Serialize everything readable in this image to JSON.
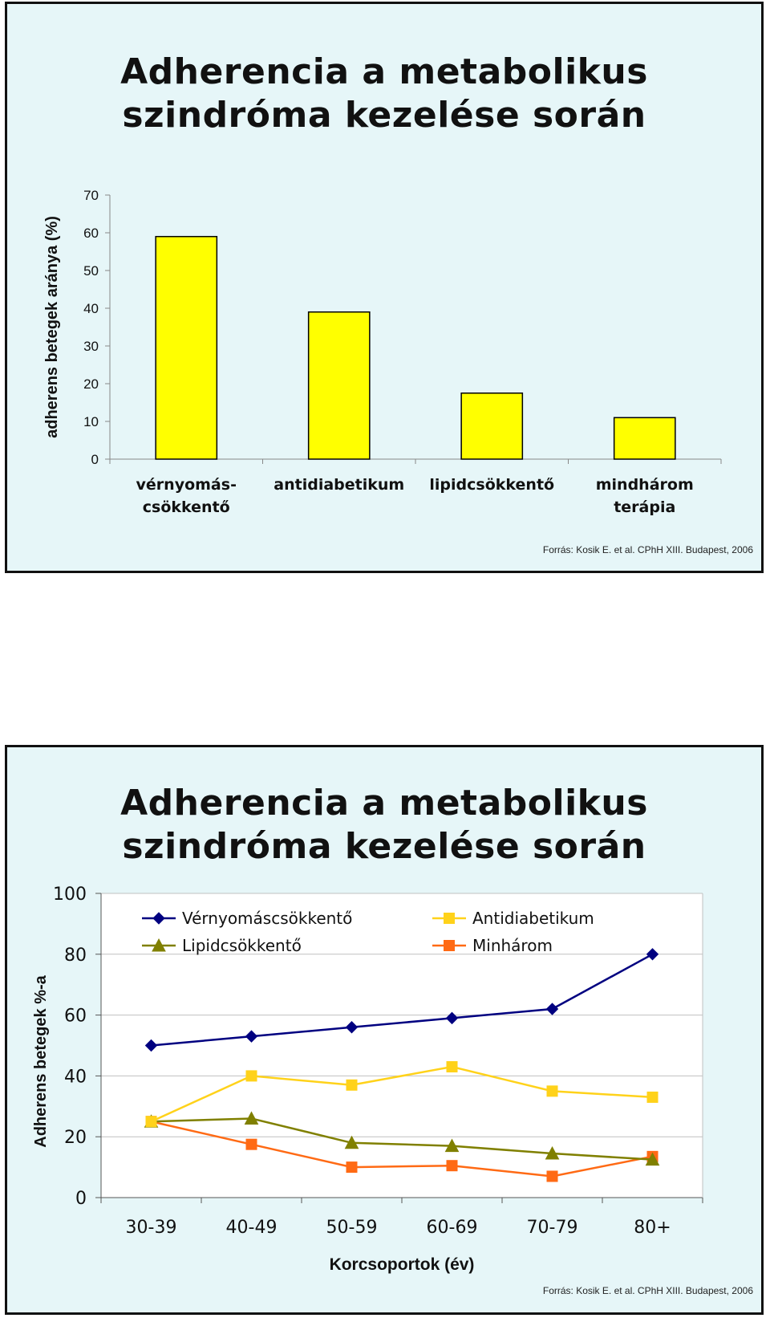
{
  "slides": [
    {
      "title_line1": "Adherencia a metabolikus",
      "title_line2": "szindróma kezelése során",
      "source": "Forrás: Kosik E. et al. CPhH XIII. Budapest, 2006"
    },
    {
      "title_line1": "Adherencia a metabolikus",
      "title_line2": "szindróma kezelése során",
      "source": "Forrás: Kosik E. et al. CPhH XIII. Budapest, 2006"
    }
  ],
  "chart_data": [
    {
      "type": "bar",
      "categories": [
        [
          "vérnyomás-",
          "csökkentő"
        ],
        [
          "antidiabetikum"
        ],
        [
          "lipidcsökkentő"
        ],
        [
          "mindhárom",
          "terápia"
        ]
      ],
      "values": [
        59,
        39,
        17.5,
        11
      ],
      "ylabel": "adherens betegek aránya (%)",
      "ylim": [
        0,
        70
      ],
      "yticks": [
        0,
        10,
        20,
        30,
        40,
        50,
        60,
        70
      ],
      "bar_color": "#ffff00",
      "grid": false,
      "legend": "none"
    },
    {
      "type": "line",
      "categories": [
        "30-39",
        "40-49",
        "50-59",
        "60-69",
        "70-79",
        "80+"
      ],
      "series": [
        {
          "name": "Vérnyomáscsökkentő",
          "values": [
            50,
            53,
            56,
            59,
            62,
            80
          ],
          "color": "#000080",
          "marker": "diamond"
        },
        {
          "name": "Antidiabetikum",
          "values": [
            25,
            40,
            37,
            43,
            35,
            33
          ],
          "color": "#ffd21a",
          "marker": "square"
        },
        {
          "name": "Lipidcsökkentő",
          "values": [
            25,
            26,
            18,
            17,
            14.5,
            12.5
          ],
          "color": "#808000",
          "marker": "triangle"
        },
        {
          "name": "Minhárom",
          "values": [
            25,
            17.5,
            10,
            10.5,
            7,
            13.5
          ],
          "color": "#ff6a14",
          "marker": "square"
        }
      ],
      "ylabel": "Adherens betegek %-a",
      "xlabel": "Korcsoportok (év)",
      "ylim": [
        0,
        100
      ],
      "yticks": [
        0,
        20,
        40,
        60,
        80,
        100
      ],
      "grid": true,
      "legend": "top"
    }
  ]
}
